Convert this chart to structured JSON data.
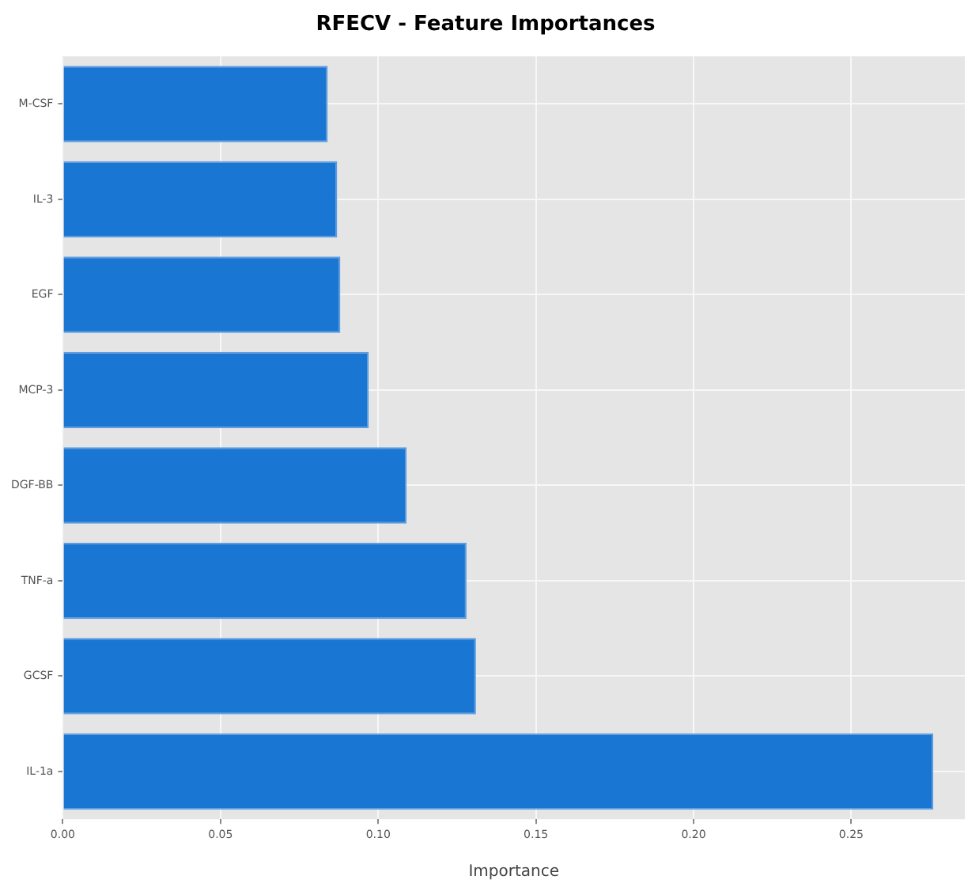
{
  "chart_data": {
    "type": "bar",
    "orientation": "horizontal",
    "title": "RFECV - Feature Importances",
    "xlabel": "Importance",
    "categories": [
      "M-CSF",
      "IL-3",
      "EGF",
      "MCP-3",
      "DGF-BB",
      "TNF-a",
      "GCSF",
      "IL-1a"
    ],
    "values": [
      0.084,
      0.087,
      0.088,
      0.097,
      0.109,
      0.128,
      0.131,
      0.276
    ],
    "color": "#1976d2",
    "xlim": [
      0,
      0.286
    ],
    "xticks": [
      {
        "value": 0,
        "label": "0.00"
      },
      0.05,
      {
        "value": 0.1,
        "label": "0.10"
      },
      0.15,
      {
        "value": 0.2,
        "label": "0.20"
      },
      0.25
    ],
    "grid": true
  }
}
